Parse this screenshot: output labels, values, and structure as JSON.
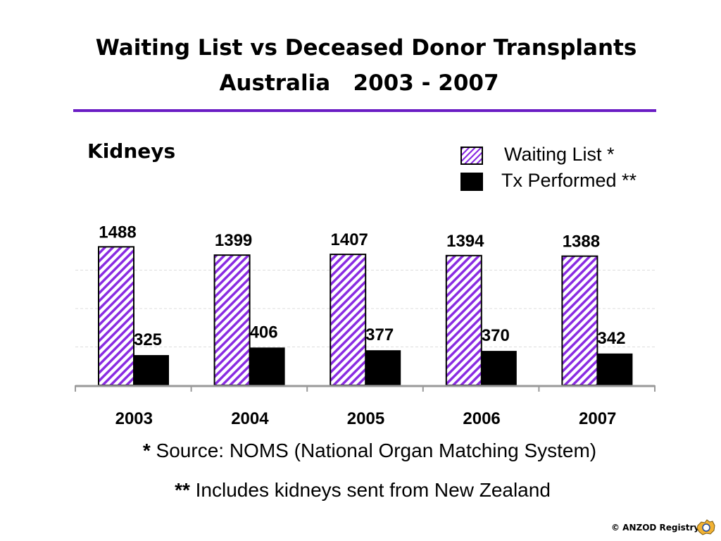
{
  "slide": {
    "title_line1": "Waiting List vs Deceased Donor Transplants",
    "title_line2": "Australia   2003 - 2007",
    "subtitle": "Kidneys",
    "legend": [
      {
        "label": "Waiting List *"
      },
      {
        "label": "Tx Performed **"
      }
    ],
    "notes": [
      {
        "marker": "*",
        "text": " Source: NOMS (National Organ Matching System)"
      },
      {
        "marker": "**",
        "text": " Includes kidneys sent from New Zealand"
      }
    ],
    "footer": "© ANZOD Registry",
    "colors": {
      "accent": "#6a1cc4",
      "waiting_hatch": "#8a2be2",
      "tx_fill": "#000000"
    }
  },
  "chart_data": {
    "type": "bar",
    "categories": [
      "2003",
      "2004",
      "2005",
      "2006",
      "2007"
    ],
    "series": [
      {
        "name": "Waiting List *",
        "values": [
          1488,
          1399,
          1407,
          1394,
          1388
        ],
        "style": "hatched-purple"
      },
      {
        "name": "Tx Performed **",
        "values": [
          325,
          406,
          377,
          370,
          342
        ],
        "style": "solid-black"
      }
    ],
    "ylim": [
      0,
      1650
    ],
    "grid": true,
    "legend_position": "top-right",
    "xlabel": "",
    "ylabel": ""
  }
}
